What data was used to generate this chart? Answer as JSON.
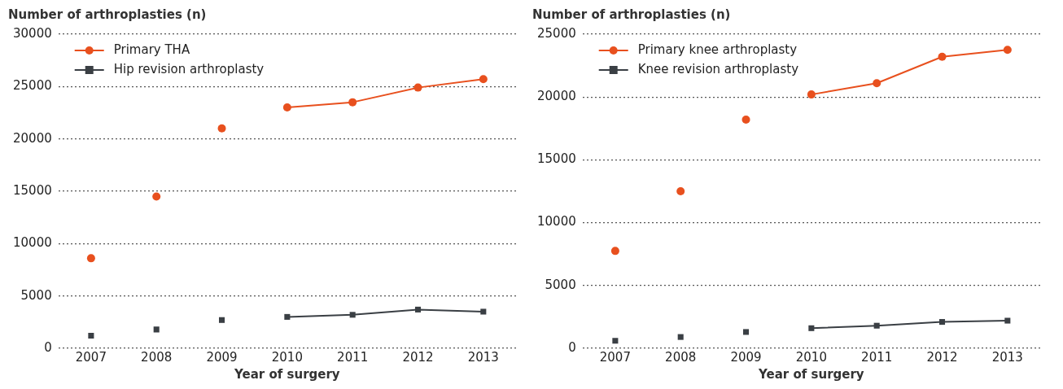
{
  "chart_data": [
    {
      "type": "line",
      "ylabel": "Number of arthroplasties (n)",
      "xlabel": "Year of surgery",
      "categories": [
        "2007",
        "2008",
        "2009",
        "2010",
        "2011",
        "2012",
        "2013"
      ],
      "ylim": [
        0,
        30000
      ],
      "yticks": [
        0,
        5000,
        10000,
        15000,
        20000,
        25000,
        30000
      ],
      "grid": "y",
      "legend": "top left",
      "series": [
        {
          "name": "Primary THA",
          "type": "line",
          "marker": "circle",
          "color": "#e8501e",
          "values": [
            null,
            null,
            null,
            23000,
            23500,
            24900,
            25700
          ]
        },
        {
          "name": "Hip revision arthroplasty",
          "type": "line",
          "marker": "square",
          "color": "#3a3f44",
          "values": [
            null,
            null,
            null,
            3000,
            3200,
            3700,
            3500
          ]
        },
        {
          "type": "scatter",
          "marker": "circle",
          "color": "#e8501e",
          "values": [
            8600,
            14500,
            21000,
            null,
            null,
            null,
            null
          ]
        },
        {
          "type": "scatter",
          "marker": "square",
          "color": "#3a3f44",
          "values": [
            1200,
            1800,
            2700,
            null,
            null,
            null,
            null
          ]
        }
      ]
    },
    {
      "type": "line",
      "ylabel": "Number of arthroplasties (n)",
      "xlabel": "Year of surgery",
      "categories": [
        "2007",
        "2008",
        "2009",
        "2010",
        "2011",
        "2012",
        "2013"
      ],
      "ylim": [
        0,
        25000
      ],
      "yticks": [
        0,
        5000,
        10000,
        15000,
        20000,
        25000
      ],
      "grid": "y",
      "legend": "top left",
      "series": [
        {
          "name": "Primary knee arthroplasty",
          "type": "line",
          "marker": "circle",
          "color": "#e8501e",
          "values": [
            null,
            null,
            null,
            20200,
            21100,
            23200,
            23750
          ]
        },
        {
          "name": "Knee revision arthroplasty",
          "type": "line",
          "marker": "square",
          "color": "#3a3f44",
          "values": [
            null,
            null,
            null,
            1600,
            1800,
            2100,
            2200
          ]
        },
        {
          "type": "scatter",
          "marker": "circle",
          "color": "#e8501e",
          "values": [
            7750,
            12500,
            18200,
            null,
            null,
            null,
            null
          ]
        },
        {
          "type": "scatter",
          "marker": "square",
          "color": "#3a3f44",
          "values": [
            600,
            900,
            1300,
            null,
            null,
            null,
            null
          ]
        }
      ]
    }
  ]
}
